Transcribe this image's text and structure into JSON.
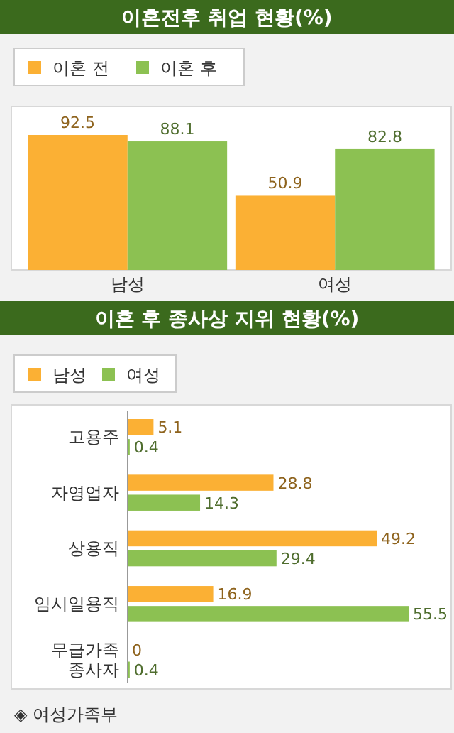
{
  "chart_data": [
    {
      "type": "bar",
      "title": "이혼전후 취업 현황(%)",
      "categories": [
        "남성",
        "여성"
      ],
      "series": [
        {
          "name": "이혼 전",
          "color": "#fbb034",
          "values": [
            92.5,
            50.9
          ]
        },
        {
          "name": "이혼 후",
          "color": "#8cc152",
          "values": [
            88.1,
            82.8
          ]
        }
      ],
      "data_labels": true,
      "legend": "top left"
    },
    {
      "type": "bar",
      "orientation": "horizontal",
      "title": "이혼 후 종사상 지위 현황(%)",
      "categories": [
        "고용주",
        "자영업자",
        "상용직",
        "임시일용직",
        "무급가족 종사자"
      ],
      "series": [
        {
          "name": "남성",
          "color": "#fbb034",
          "values": [
            5.1,
            28.8,
            49.2,
            16.9,
            0
          ]
        },
        {
          "name": "여성",
          "color": "#8cc152",
          "values": [
            0.4,
            14.3,
            29.4,
            55.5,
            0.4
          ]
        }
      ],
      "data_labels": true,
      "legend": "top left",
      "annotations": [
        "◈ 여성가족부"
      ]
    }
  ]
}
